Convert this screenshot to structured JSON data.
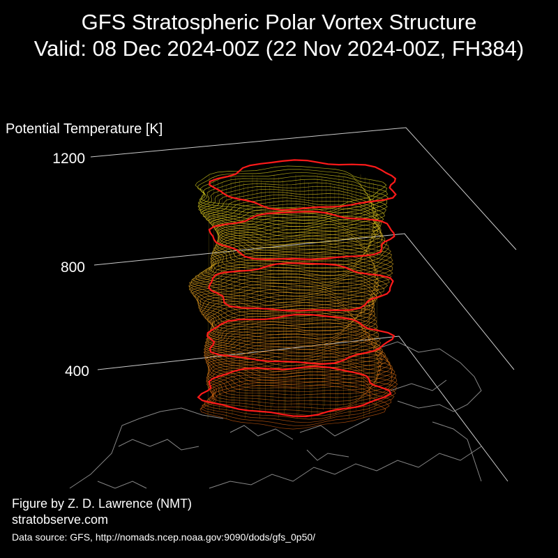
{
  "header": {
    "title_line1": "GFS Stratospheric Polar Vortex Structure",
    "title_line2": "Valid: 08 Dec 2024-00Z  (22 Nov 2024-00Z, FH384)"
  },
  "axis": {
    "label": "Potential Temperature [K]",
    "ticks": [
      "1200",
      "800",
      "400"
    ]
  },
  "footer": {
    "credit_line1": "Figure by Z. D. Lawrence (NMT)",
    "credit_line2": "stratobserve.com",
    "source": "Data source: GFS, http://nomads.ncep.noaa.gov:9090/dods/gfs_0p50/"
  },
  "colors": {
    "background": "#000000",
    "vortex_top": "#e8e020",
    "vortex_mid": "#e8a020",
    "vortex_bottom": "#d86010",
    "highlight": "#ff1a1a",
    "gridline": "#cccccc",
    "coastline": "#888888"
  },
  "chart_data": {
    "type": "3d-surface",
    "zlabel": "Potential Temperature [K]",
    "zticks": [
      400,
      800,
      1200
    ],
    "highlighted_levels": [
      400,
      600,
      800,
      1000,
      1200
    ]
  }
}
